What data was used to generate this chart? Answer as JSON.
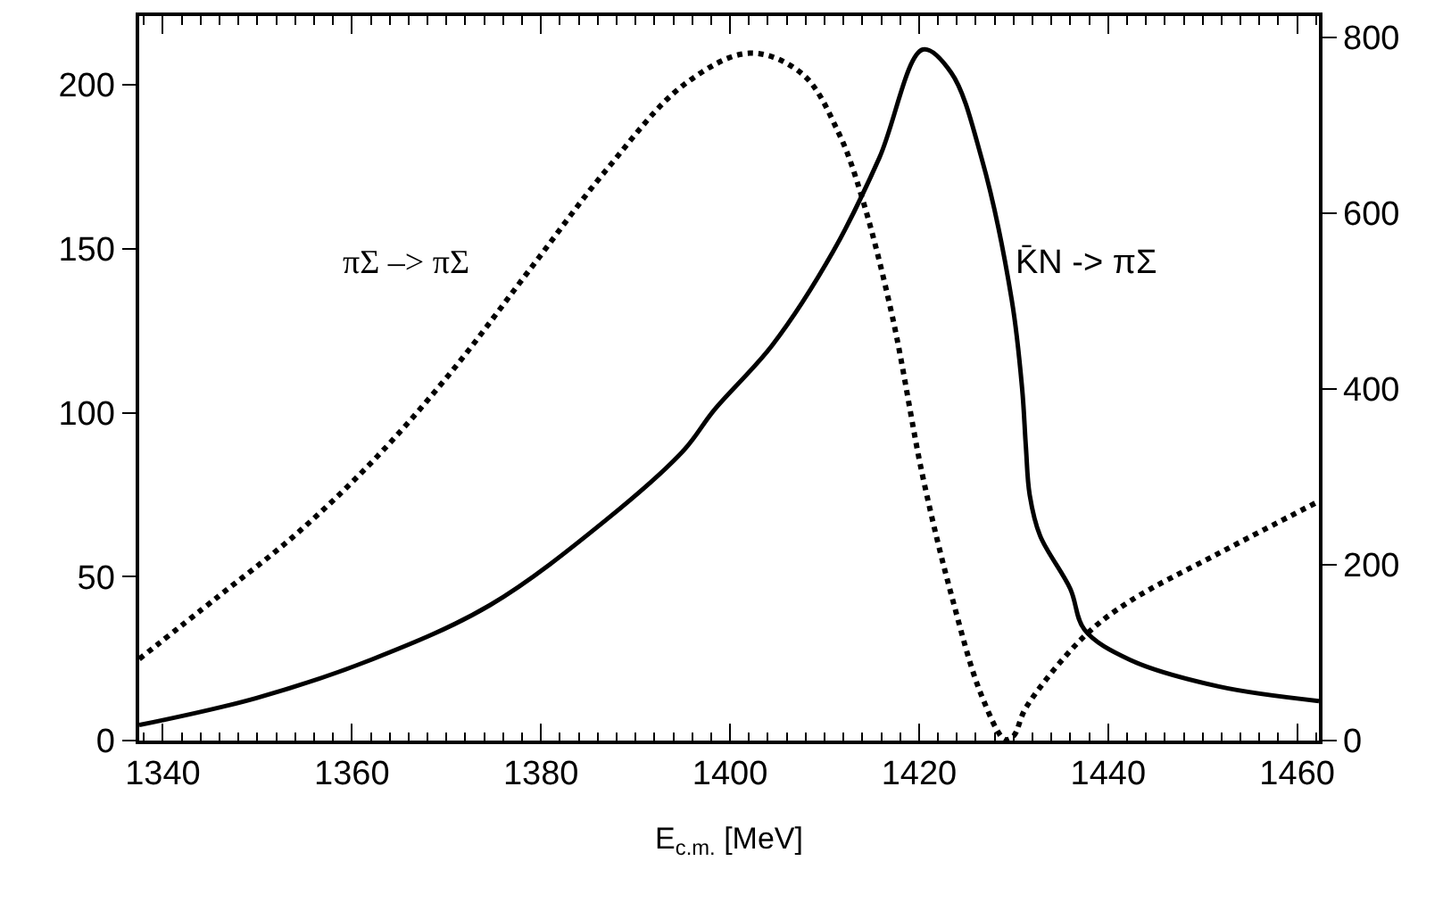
{
  "chart_data": {
    "type": "line",
    "xlabel": "E$_{c.m.}$ [MeV]",
    "x": [
      1337.5,
      1345.8,
      1354,
      1362.2,
      1370.5,
      1378.7,
      1386.9,
      1395.1,
      1402.1,
      1407.7,
      1411.5,
      1414,
      1417.2,
      1420.4,
      1423.4,
      1426.6,
      1429.1,
      1430,
      1431.3,
      1437.4,
      1442.3,
      1451.7,
      1462.3
    ],
    "series": [
      {
        "name": "πΣ –> πΣ",
        "color": "#000000",
        "line_style": "dotted",
        "values": [
          24.9,
          43.8,
          62.7,
          85.2,
          112.4,
          143.2,
          174,
          200,
          209.7,
          203.2,
          185.3,
          165.3,
          129,
          80.4,
          44.6,
          13.8,
          0.3,
          1.4,
          10,
          31.6,
          42.5,
          57.1,
          73
        ]
      },
      {
        "name": "K̄N -> πΣ",
        "color": "#000000",
        "line_style": "solid",
        "axis": "y2",
        "x": [
          1337.5,
          1349.9,
          1362.2,
          1374.6,
          1386.9,
          1395.1,
          1398.3,
          1404.5,
          1410.9,
          1415.8,
          1420.4,
          1423.4,
          1426.6,
          1429.8,
          1430.9,
          1431.3,
          1431.7,
          1432.8,
          1436,
          1437.5,
          1442.3,
          1451.7,
          1462.3
        ],
        "values": [
          17.6,
          48.4,
          92.6,
          154,
          251,
          330,
          375.6,
          450,
          556,
          662.8,
          785.9,
          759.6,
          662.8,
          501.5,
          400.6,
          334,
          279.5,
          233,
          172.5,
          126,
          91.8,
          61.5,
          45
        ]
      }
    ],
    "xlim": [
      1337.5,
      1462.3
    ],
    "xticks": [
      1340,
      1360,
      1380,
      1400,
      1420,
      1440,
      1460
    ],
    "ylim": [
      0,
      221
    ],
    "yticks": [
      0,
      50,
      100,
      150,
      200
    ],
    "y2lim": [
      0,
      824
    ],
    "y2ticks": [
      0,
      200,
      400,
      600,
      800
    ],
    "legend": false
  }
}
